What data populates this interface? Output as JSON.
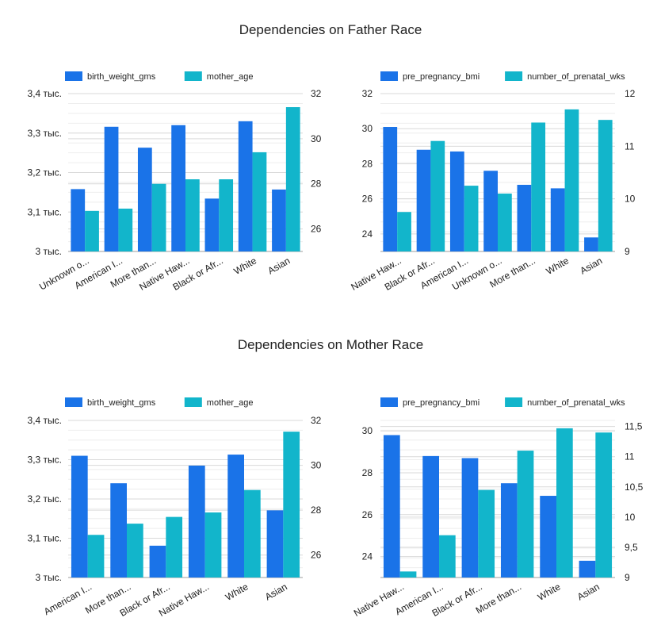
{
  "sections": [
    {
      "title": "Dependencies on Father Race"
    },
    {
      "title": "Dependencies on Mother Race"
    }
  ],
  "colors": {
    "primary": "#1a73e8",
    "secondary": "#12b5cb",
    "grid": "#d9d9d9",
    "text": "#212121"
  },
  "chart_data": [
    {
      "type": "bar",
      "title": "",
      "categories": [
        "Unknown o...",
        "American I...",
        "More than...",
        "Native Haw...",
        "Black or Afr...",
        "White",
        "Asian"
      ],
      "series": [
        {
          "name": "birth_weight_gms",
          "axis": "left",
          "values": [
            3158,
            3316,
            3263,
            3320,
            3134,
            3330,
            3157
          ]
        },
        {
          "name": "mother_age",
          "axis": "right",
          "values": [
            26.8,
            26.9,
            28.0,
            28.2,
            28.2,
            29.4,
            31.4
          ]
        }
      ],
      "left_axis": {
        "ylim": [
          3000,
          3400
        ],
        "ticks": [
          "3 тыс.",
          "3,1 тыс.",
          "3,2 тыс.",
          "3,3 тыс.",
          "3,4 тыс."
        ]
      },
      "right_axis": {
        "ylim": [
          25,
          32
        ],
        "ticks": [
          "26",
          "28",
          "30",
          "32"
        ]
      },
      "legend": "top-left",
      "grid": true
    },
    {
      "type": "bar",
      "title": "",
      "categories": [
        "Native Haw...",
        "Black or Afr...",
        "American I...",
        "Unknown o...",
        "More than...",
        "White",
        "Asian"
      ],
      "series": [
        {
          "name": "pre_pregnancy_bmi",
          "axis": "left",
          "values": [
            30.1,
            28.8,
            28.7,
            27.6,
            26.8,
            26.6,
            23.8
          ]
        },
        {
          "name": "number_of_prenatal_wks",
          "axis": "right",
          "values": [
            9.75,
            11.1,
            10.25,
            10.1,
            11.45,
            11.7,
            11.5
          ]
        }
      ],
      "left_axis": {
        "ylim": [
          23,
          32
        ],
        "ticks": [
          "24",
          "26",
          "28",
          "30",
          "32"
        ]
      },
      "right_axis": {
        "ylim": [
          9,
          12
        ],
        "ticks": [
          "9",
          "10",
          "11",
          "12"
        ]
      },
      "legend": "top-left",
      "grid": true
    },
    {
      "type": "bar",
      "title": "",
      "categories": [
        "American I...",
        "More than...",
        "Black or Afr...",
        "Native Haw...",
        "White",
        "Asian"
      ],
      "series": [
        {
          "name": "birth_weight_gms",
          "axis": "left",
          "values": [
            3310,
            3240,
            3081,
            3285,
            3313,
            3171
          ]
        },
        {
          "name": "mother_age",
          "axis": "right",
          "values": [
            26.9,
            27.4,
            27.7,
            27.9,
            28.9,
            31.5
          ]
        }
      ],
      "left_axis": {
        "ylim": [
          3000,
          3400
        ],
        "ticks": [
          "3 тыс.",
          "3,1 тыс.",
          "3,2 тыс.",
          "3,3 тыс.",
          "3,4 тыс."
        ]
      },
      "right_axis": {
        "ylim": [
          25,
          32
        ],
        "ticks": [
          "26",
          "28",
          "30",
          "32"
        ]
      },
      "legend": "top-left",
      "grid": true
    },
    {
      "type": "bar",
      "title": "",
      "categories": [
        "Native Haw...",
        "American I...",
        "Black or Afr...",
        "More than...",
        "White",
        "Asian"
      ],
      "series": [
        {
          "name": "pre_pregnancy_bmi",
          "axis": "left",
          "values": [
            29.8,
            28.8,
            28.7,
            27.5,
            26.9,
            23.8
          ]
        },
        {
          "name": "number_of_prenatal_wks",
          "axis": "right",
          "values": [
            9.1,
            9.7,
            10.45,
            11.1,
            11.47,
            11.4
          ]
        }
      ],
      "left_axis": {
        "ylim": [
          23,
          30.5
        ],
        "ticks": [
          "24",
          "26",
          "28",
          "30"
        ]
      },
      "right_axis": {
        "ylim": [
          9,
          11.6
        ],
        "ticks": [
          "9",
          "9,5",
          "10",
          "10,5",
          "11",
          "11,5"
        ]
      },
      "legend": "top-left",
      "grid": true
    }
  ]
}
